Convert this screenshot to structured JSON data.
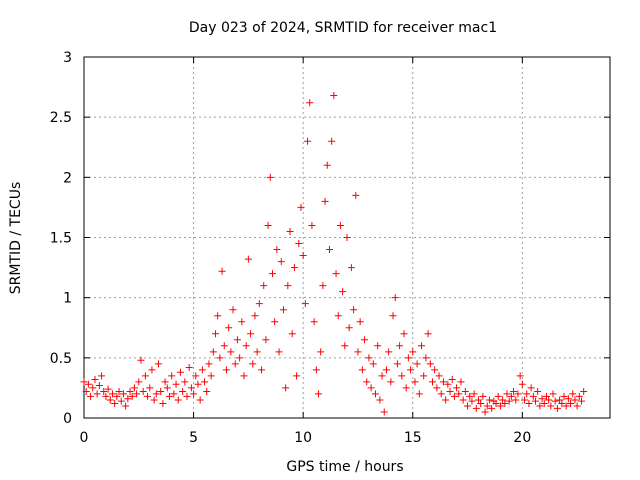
{
  "chart_data": {
    "type": "scatter",
    "title": "Day 023 of 2024, SRMTID for receiver mac1",
    "xlabel": "GPS time / hours",
    "ylabel": "SRMTID / TECUs",
    "xlim": [
      0,
      24
    ],
    "ylim": [
      0,
      3
    ],
    "grid": true,
    "marker": "+",
    "x_ticks": [
      0,
      5,
      10,
      15,
      20
    ],
    "y_ticks": [
      0,
      0.5,
      1,
      1.5,
      2,
      2.5,
      3
    ],
    "x_tick_labels": [
      "0",
      "5",
      "10",
      "15",
      "20"
    ],
    "y_tick_labels": [
      "0",
      "0.5",
      "1",
      "1.5",
      "2",
      "2.5",
      "3"
    ],
    "colors": {
      "points": "#ff0000",
      "grid": "#a0a0a0",
      "axis": "#000000"
    },
    "series": [
      {
        "name": "mac1",
        "points": [
          [
            0.0,
            0.3
          ],
          [
            0.1,
            0.22
          ],
          [
            0.2,
            0.28
          ],
          [
            0.3,
            0.18
          ],
          [
            0.4,
            0.25
          ],
          [
            0.5,
            0.32
          ],
          [
            0.6,
            0.2
          ],
          [
            0.7,
            0.27
          ],
          [
            0.8,
            0.35
          ],
          [
            0.9,
            0.22
          ],
          [
            1.0,
            0.18
          ],
          [
            1.1,
            0.24
          ],
          [
            1.2,
            0.15
          ],
          [
            1.3,
            0.2
          ],
          [
            1.4,
            0.12
          ],
          [
            1.5,
            0.18
          ],
          [
            1.6,
            0.22
          ],
          [
            1.7,
            0.14
          ],
          [
            1.8,
            0.2
          ],
          [
            1.9,
            0.1
          ],
          [
            2.0,
            0.16
          ],
          [
            2.1,
            0.22
          ],
          [
            2.2,
            0.18
          ],
          [
            2.3,
            0.25
          ],
          [
            2.4,
            0.2
          ],
          [
            2.5,
            0.3
          ],
          [
            2.6,
            0.48
          ],
          [
            2.7,
            0.22
          ],
          [
            2.8,
            0.35
          ],
          [
            2.9,
            0.18
          ],
          [
            3.0,
            0.25
          ],
          [
            3.1,
            0.4
          ],
          [
            3.2,
            0.15
          ],
          [
            3.3,
            0.2
          ],
          [
            3.4,
            0.45
          ],
          [
            3.5,
            0.22
          ],
          [
            3.6,
            0.12
          ],
          [
            3.7,
            0.3
          ],
          [
            3.8,
            0.25
          ],
          [
            3.9,
            0.18
          ],
          [
            4.0,
            0.35
          ],
          [
            4.1,
            0.2
          ],
          [
            4.2,
            0.28
          ],
          [
            4.3,
            0.15
          ],
          [
            4.4,
            0.38
          ],
          [
            4.5,
            0.22
          ],
          [
            4.6,
            0.3
          ],
          [
            4.7,
            0.18
          ],
          [
            4.8,
            0.42
          ],
          [
            4.9,
            0.25
          ],
          [
            5.0,
            0.2
          ],
          [
            5.1,
            0.35
          ],
          [
            5.2,
            0.28
          ],
          [
            5.3,
            0.15
          ],
          [
            5.4,
            0.4
          ],
          [
            5.5,
            0.3
          ],
          [
            5.6,
            0.22
          ],
          [
            5.7,
            0.45
          ],
          [
            5.8,
            0.35
          ],
          [
            5.9,
            0.55
          ],
          [
            6.0,
            0.7
          ],
          [
            6.1,
            0.85
          ],
          [
            6.2,
            0.5
          ],
          [
            6.3,
            1.22
          ],
          [
            6.4,
            0.6
          ],
          [
            6.5,
            0.4
          ],
          [
            6.6,
            0.75
          ],
          [
            6.7,
            0.55
          ],
          [
            6.8,
            0.9
          ],
          [
            6.9,
            0.45
          ],
          [
            7.0,
            0.65
          ],
          [
            7.1,
            0.5
          ],
          [
            7.2,
            0.8
          ],
          [
            7.3,
            0.35
          ],
          [
            7.4,
            0.6
          ],
          [
            7.5,
            1.32
          ],
          [
            7.6,
            0.7
          ],
          [
            7.7,
            0.45
          ],
          [
            7.8,
            0.85
          ],
          [
            7.9,
            0.55
          ],
          [
            8.0,
            0.95
          ],
          [
            8.1,
            0.4
          ],
          [
            8.2,
            1.1
          ],
          [
            8.3,
            0.65
          ],
          [
            8.4,
            1.6
          ],
          [
            8.5,
            2.0
          ],
          [
            8.6,
            1.2
          ],
          [
            8.7,
            0.8
          ],
          [
            8.8,
            1.4
          ],
          [
            8.9,
            0.55
          ],
          [
            9.0,
            1.3
          ],
          [
            9.1,
            0.9
          ],
          [
            9.2,
            0.25
          ],
          [
            9.3,
            1.1
          ],
          [
            9.4,
            1.55
          ],
          [
            9.5,
            0.7
          ],
          [
            9.6,
            1.25
          ],
          [
            9.7,
            0.35
          ],
          [
            9.8,
            1.45
          ],
          [
            9.9,
            1.75
          ],
          [
            10.0,
            1.35
          ],
          [
            10.1,
            0.95
          ],
          [
            10.2,
            2.3
          ],
          [
            10.3,
            2.62
          ],
          [
            10.4,
            1.6
          ],
          [
            10.5,
            0.8
          ],
          [
            10.6,
            0.4
          ],
          [
            10.7,
            0.2
          ],
          [
            10.8,
            0.55
          ],
          [
            10.9,
            1.1
          ],
          [
            11.0,
            1.8
          ],
          [
            11.1,
            2.1
          ],
          [
            11.2,
            1.4
          ],
          [
            11.3,
            2.3
          ],
          [
            11.4,
            2.68
          ],
          [
            11.5,
            1.2
          ],
          [
            11.6,
            0.85
          ],
          [
            11.7,
            1.6
          ],
          [
            11.8,
            1.05
          ],
          [
            11.9,
            0.6
          ],
          [
            12.0,
            1.5
          ],
          [
            12.1,
            0.75
          ],
          [
            12.2,
            1.25
          ],
          [
            12.3,
            0.9
          ],
          [
            12.4,
            1.85
          ],
          [
            12.5,
            0.55
          ],
          [
            12.6,
            0.8
          ],
          [
            12.7,
            0.4
          ],
          [
            12.8,
            0.65
          ],
          [
            12.9,
            0.3
          ],
          [
            13.0,
            0.5
          ],
          [
            13.1,
            0.25
          ],
          [
            13.2,
            0.45
          ],
          [
            13.3,
            0.2
          ],
          [
            13.4,
            0.6
          ],
          [
            13.5,
            0.15
          ],
          [
            13.6,
            0.35
          ],
          [
            13.7,
            0.05
          ],
          [
            13.8,
            0.4
          ],
          [
            13.9,
            0.55
          ],
          [
            14.0,
            0.3
          ],
          [
            14.1,
            0.85
          ],
          [
            14.2,
            1.0
          ],
          [
            14.3,
            0.45
          ],
          [
            14.4,
            0.6
          ],
          [
            14.5,
            0.35
          ],
          [
            14.6,
            0.7
          ],
          [
            14.7,
            0.25
          ],
          [
            14.8,
            0.5
          ],
          [
            14.9,
            0.4
          ],
          [
            15.0,
            0.55
          ],
          [
            15.1,
            0.3
          ],
          [
            15.2,
            0.45
          ],
          [
            15.3,
            0.2
          ],
          [
            15.4,
            0.6
          ],
          [
            15.5,
            0.35
          ],
          [
            15.6,
            0.5
          ],
          [
            15.7,
            0.7
          ],
          [
            15.8,
            0.45
          ],
          [
            15.9,
            0.3
          ],
          [
            16.0,
            0.4
          ],
          [
            16.1,
            0.25
          ],
          [
            16.2,
            0.35
          ],
          [
            16.3,
            0.2
          ],
          [
            16.4,
            0.3
          ],
          [
            16.5,
            0.15
          ],
          [
            16.6,
            0.28
          ],
          [
            16.7,
            0.22
          ],
          [
            16.8,
            0.32
          ],
          [
            16.9,
            0.18
          ],
          [
            17.0,
            0.25
          ],
          [
            17.1,
            0.2
          ],
          [
            17.2,
            0.3
          ],
          [
            17.3,
            0.15
          ],
          [
            17.4,
            0.22
          ],
          [
            17.5,
            0.1
          ],
          [
            17.6,
            0.18
          ],
          [
            17.7,
            0.14
          ],
          [
            17.8,
            0.2
          ],
          [
            17.9,
            0.08
          ],
          [
            18.0,
            0.15
          ],
          [
            18.1,
            0.12
          ],
          [
            18.2,
            0.18
          ],
          [
            18.3,
            0.05
          ],
          [
            18.4,
            0.1
          ],
          [
            18.5,
            0.15
          ],
          [
            18.6,
            0.08
          ],
          [
            18.7,
            0.14
          ],
          [
            18.8,
            0.12
          ],
          [
            18.9,
            0.18
          ],
          [
            19.0,
            0.1
          ],
          [
            19.1,
            0.15
          ],
          [
            19.2,
            0.12
          ],
          [
            19.3,
            0.2
          ],
          [
            19.4,
            0.14
          ],
          [
            19.5,
            0.18
          ],
          [
            19.6,
            0.22
          ],
          [
            19.7,
            0.15
          ],
          [
            19.8,
            0.2
          ],
          [
            19.9,
            0.35
          ],
          [
            20.0,
            0.28
          ],
          [
            20.1,
            0.15
          ],
          [
            20.2,
            0.2
          ],
          [
            20.3,
            0.12
          ],
          [
            20.4,
            0.25
          ],
          [
            20.5,
            0.18
          ],
          [
            20.6,
            0.14
          ],
          [
            20.7,
            0.22
          ],
          [
            20.8,
            0.1
          ],
          [
            20.9,
            0.16
          ],
          [
            21.0,
            0.12
          ],
          [
            21.1,
            0.18
          ],
          [
            21.2,
            0.15
          ],
          [
            21.3,
            0.1
          ],
          [
            21.4,
            0.2
          ],
          [
            21.5,
            0.14
          ],
          [
            21.6,
            0.08
          ],
          [
            21.7,
            0.15
          ],
          [
            21.8,
            0.12
          ],
          [
            21.9,
            0.18
          ],
          [
            22.0,
            0.1
          ],
          [
            22.1,
            0.16
          ],
          [
            22.2,
            0.12
          ],
          [
            22.3,
            0.2
          ],
          [
            22.4,
            0.15
          ],
          [
            22.5,
            0.1
          ],
          [
            22.6,
            0.18
          ],
          [
            22.7,
            0.14
          ],
          [
            22.8,
            0.22
          ]
        ]
      }
    ]
  }
}
